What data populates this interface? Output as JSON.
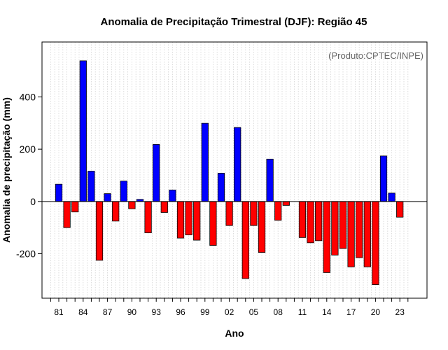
{
  "chart_data": {
    "type": "bar",
    "title": "Anomalia de Precipitação Trimestral (DJF): Região 45",
    "xlabel": "Ano",
    "ylabel": "Anomalia de precipitação (mm)",
    "annotation": "(Produto:CPTEC/INPE)",
    "ylim": [
      -370,
      610
    ],
    "yticks": [
      -200,
      0,
      200,
      400
    ],
    "tick_labels": [
      "81",
      "84",
      "87",
      "90",
      "93",
      "96",
      "99",
      "02",
      "05",
      "08",
      "11",
      "14",
      "17",
      "20",
      "23"
    ],
    "tick_years": [
      1981,
      1984,
      1987,
      1990,
      1993,
      1996,
      1999,
      2002,
      2005,
      2008,
      2011,
      2014,
      2017,
      2020,
      2023
    ],
    "grid": true,
    "colors": {
      "positive": "#0000ff",
      "negative": "#ff0000",
      "zero_line": "#000000"
    },
    "years": [
      1981,
      1982,
      1983,
      1984,
      1985,
      1986,
      1987,
      1988,
      1989,
      1990,
      1991,
      1992,
      1993,
      1994,
      1995,
      1996,
      1997,
      1998,
      1999,
      2000,
      2001,
      2002,
      2003,
      2004,
      2005,
      2006,
      2007,
      2008,
      2009,
      2010,
      2011,
      2012,
      2013,
      2014,
      2015,
      2016,
      2017,
      2018,
      2019,
      2020,
      2021,
      2022,
      2023
    ],
    "values": [
      66,
      -100,
      -40,
      538,
      116,
      -225,
      30,
      -75,
      78,
      -28,
      8,
      -120,
      218,
      -42,
      44,
      -140,
      -128,
      -148,
      299,
      -168,
      108,
      -92,
      283,
      -295,
      -92,
      -195,
      162,
      -72,
      -15,
      0,
      -138,
      -158,
      -150,
      -272,
      -205,
      -180,
      -250,
      -215,
      -250,
      -318,
      174,
      32,
      -60
    ]
  }
}
